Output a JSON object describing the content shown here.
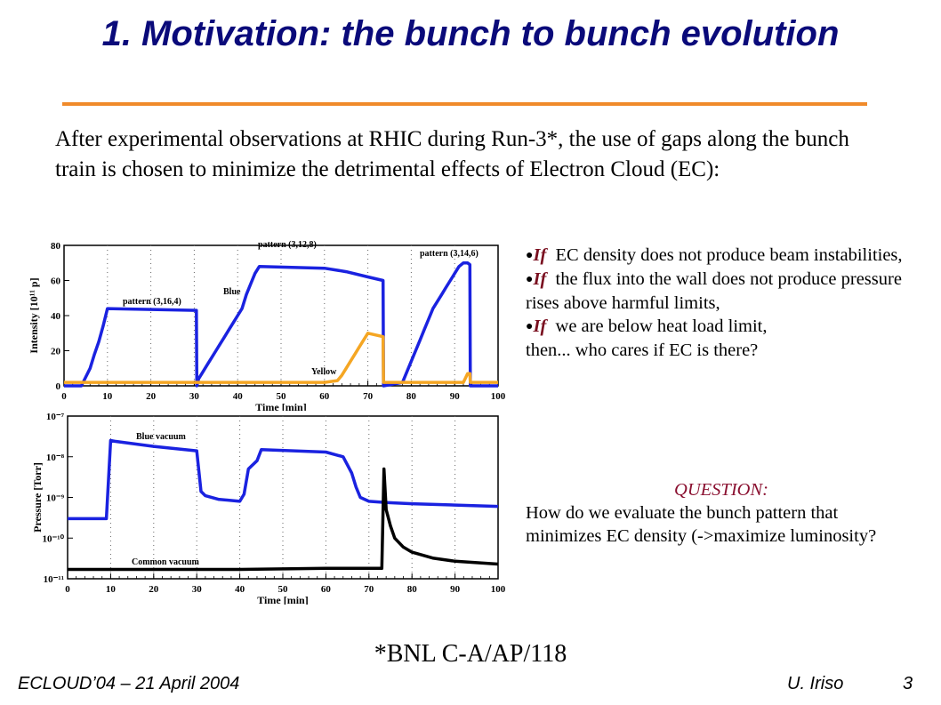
{
  "title": "1. Motivation: the bunch to bunch evolution",
  "intro": "After experimental observations at RHIC during Run-3*, the use of gaps along the bunch train is chosen to minimize the detrimental effects of Electron Cloud (EC):",
  "bullets": [
    {
      "keyword": "If",
      "text": "EC density does not produce beam instabilities,"
    },
    {
      "keyword": "If",
      "text": "the flux into the wall does not produce pressure rises above harmful limits,"
    },
    {
      "keyword": "If",
      "text": "we are below heat load limit,"
    }
  ],
  "conclusion": "then... who cares if EC is there?",
  "question": {
    "heading": "QUESTION:",
    "text": "How do we evaluate the bunch pattern that minimizes EC density (->maximize luminosity?"
  },
  "footnote": "*BNL C-A/AP/118",
  "footer": {
    "left": "ECLOUD’04 – 21 April 2004",
    "author": "U. Iriso",
    "page": "3"
  },
  "colors": {
    "title": "#0a0a7a",
    "rule": "#f08a2a",
    "blue_series": "#1a22e0",
    "yellow_series": "#f5a623",
    "common_series": "#000000"
  },
  "chart_data": [
    {
      "type": "line",
      "xlabel": "Time [min]",
      "ylabel": "Intensity [10¹¹ p]",
      "xlim": [
        0,
        100
      ],
      "ylim": [
        0,
        80
      ],
      "x_ticks": [
        "0",
        "10",
        "20",
        "30",
        "40",
        "50",
        "60",
        "70",
        "80",
        "90",
        "100"
      ],
      "y_ticks": [
        "0",
        "20",
        "40",
        "60",
        "80"
      ],
      "grid": "vertical dotted",
      "series": [
        {
          "name": "Blue",
          "color": "#1a22e0",
          "x": [
            0,
            4,
            5,
            6,
            7,
            8,
            9,
            10,
            30.5,
            30.6,
            31,
            32,
            33,
            34,
            35,
            36,
            37,
            38,
            39,
            40,
            41,
            42,
            43,
            44,
            45,
            60,
            65,
            70,
            73.5,
            73.6,
            78,
            79,
            80,
            81,
            82,
            83,
            84,
            85,
            86,
            87,
            88,
            89,
            90,
            91,
            92,
            93,
            93.5,
            93.6,
            100
          ],
          "y": [
            0,
            0,
            5,
            10,
            18,
            25,
            34,
            44,
            43,
            0,
            4,
            8,
            12,
            16,
            20,
            24,
            28,
            32,
            36,
            40,
            44,
            52,
            58,
            64,
            68,
            67,
            65,
            62,
            60,
            0,
            2,
            8,
            14,
            20,
            26,
            32,
            38,
            44,
            48,
            52,
            56,
            60,
            64,
            68,
            70,
            70,
            69,
            0,
            0
          ]
        },
        {
          "name": "Yellow",
          "color": "#f5a623",
          "x": [
            0,
            60,
            63,
            64,
            65,
            66,
            67,
            68,
            69,
            70,
            73.5,
            73.6,
            92,
            93,
            93.5,
            93.6,
            100
          ],
          "y": [
            2,
            2,
            3,
            6,
            10,
            14,
            18,
            22,
            26,
            30,
            28,
            2,
            2,
            7,
            7,
            2,
            2
          ]
        }
      ],
      "annotations": [
        "pattern (3,16,4)",
        "pattern (3,12,8)",
        "pattern (3,14,6)",
        "Blue",
        "Yellow"
      ]
    },
    {
      "type": "line",
      "xlabel": "Time [min]",
      "ylabel": "Pressure [Torr]",
      "xlim": [
        0,
        100
      ],
      "ylim": [
        1e-11,
        1e-07
      ],
      "yscale": "log",
      "x_ticks": [
        "0",
        "10",
        "20",
        "30",
        "40",
        "50",
        "60",
        "70",
        "80",
        "90",
        "100"
      ],
      "y_ticks": [
        "10⁻¹¹",
        "10⁻¹⁰",
        "10⁻⁹",
        "10⁻⁸",
        "10⁻⁷"
      ],
      "grid": "vertical dotted",
      "series": [
        {
          "name": "Blue vacuum",
          "color": "#1a22e0",
          "x": [
            0,
            9,
            10,
            11,
            20,
            30,
            31,
            32,
            35,
            40,
            41,
            42,
            44,
            45,
            60,
            64,
            66,
            67,
            68,
            70,
            74,
            80,
            90,
            100
          ],
          "y": [
            3e-10,
            3e-10,
            2.5e-08,
            2.4e-08,
            1.8e-08,
            1.4e-08,
            1.4e-09,
            1.1e-09,
            9e-10,
            8e-10,
            1.2e-09,
            5e-09,
            8e-09,
            1.5e-08,
            1.3e-08,
            1e-08,
            4e-09,
            1.8e-09,
            1e-09,
            8e-10,
            7.5e-10,
            7e-10,
            6.5e-10,
            6e-10
          ]
        },
        {
          "name": "Common vacuum",
          "color": "#000000",
          "x": [
            0,
            20,
            40,
            60,
            73,
            73.5,
            74,
            75,
            76,
            78,
            80,
            85,
            90,
            100
          ],
          "y": [
            1.7e-11,
            1.7e-11,
            1.7e-11,
            1.8e-11,
            1.8e-11,
            5e-09,
            5e-10,
            2e-10,
            1e-10,
            6e-11,
            4.5e-11,
            3.2e-11,
            2.7e-11,
            2.3e-11
          ]
        }
      ],
      "annotations": [
        "Blue vacuum",
        "Common vacuum"
      ]
    }
  ]
}
